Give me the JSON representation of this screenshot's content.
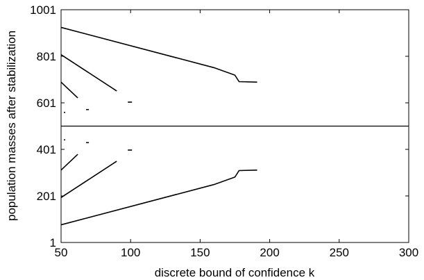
{
  "chart_data": {
    "type": "scatter",
    "xlabel": "discrete bound of confidence k",
    "ylabel": "population masses after stabilization",
    "xlim": [
      50,
      300
    ],
    "ylim": [
      1,
      1001
    ],
    "x_ticks": [
      50,
      100,
      150,
      200,
      250,
      300
    ],
    "y_ticks": [
      1,
      201,
      401,
      601,
      801,
      1001
    ],
    "grid": false,
    "legend": "none",
    "line_color": "#000000",
    "series": [
      {
        "x": [
          50,
          300
        ],
        "y": [
          501,
          501
        ]
      },
      {
        "x": [
          50,
          160,
          175,
          178,
          191
        ],
        "y": [
          925,
          752,
          720,
          692,
          690
        ]
      },
      {
        "x": [
          50,
          160,
          175,
          178,
          191
        ],
        "y": [
          77,
          250,
          282,
          310,
          312
        ]
      },
      {
        "x": [
          50,
          90
        ],
        "y": [
          808,
          652
        ]
      },
      {
        "x": [
          50,
          90
        ],
        "y": [
          194,
          350
        ]
      },
      {
        "x": [
          50,
          62
        ],
        "y": [
          690,
          622
        ]
      },
      {
        "x": [
          50,
          62
        ],
        "y": [
          312,
          380
        ]
      },
      {
        "x": [
          68,
          70
        ],
        "y": [
          572,
          572
        ]
      },
      {
        "x": [
          68,
          70
        ],
        "y": [
          430,
          430
        ]
      },
      {
        "x": [
          98,
          101
        ],
        "y": [
          604,
          604
        ]
      },
      {
        "x": [
          98,
          101
        ],
        "y": [
          398,
          398
        ]
      },
      {
        "x": [
          52,
          53
        ],
        "y": [
          560,
          560
        ]
      },
      {
        "x": [
          52,
          53
        ],
        "y": [
          442,
          442
        ]
      }
    ]
  }
}
